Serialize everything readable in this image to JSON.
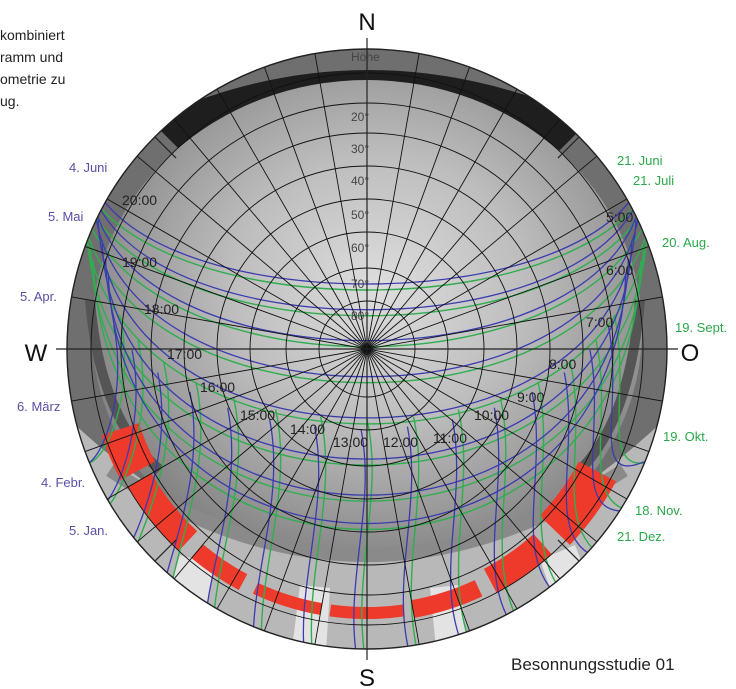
{
  "intro_text": [
    "kombiniert",
    "ramm und",
    "ometrie zu",
    "ug."
  ],
  "footer": "Besonnungsstudie 01",
  "directions": {
    "north": "N",
    "south": "S",
    "west": "W",
    "east": "O"
  },
  "altitude_labels": [
    "Höhe",
    "20°",
    "30°",
    "40°",
    "50°",
    "60°",
    "70°",
    "80°"
  ],
  "hour_labels": [
    "5:00",
    "6:00",
    "7:00",
    "8:00",
    "9:00",
    "10:00",
    "11:00",
    "12:00",
    "13:00",
    "14:00",
    "15:00",
    "16:00",
    "17:00",
    "18:00",
    "19:00",
    "20:00"
  ],
  "date_labels_left": [
    "4. Juni",
    "5. Mai",
    "5. Apr.",
    "6. März",
    "4. Febr.",
    "5. Jan."
  ],
  "date_labels_right": [
    "21. Juni",
    "21. Juli",
    "20. Aug.",
    "19. Sept.",
    "19. Okt.",
    "18. Nov.",
    "21. Dez."
  ],
  "colors": {
    "left_labels": "#5a4fa6",
    "right_labels": "#2aa84a",
    "green_curves": "#2fae4f",
    "blue_curves": "#3b3bb0",
    "shading": "#ee3a2a",
    "grid": "#111111"
  }
}
